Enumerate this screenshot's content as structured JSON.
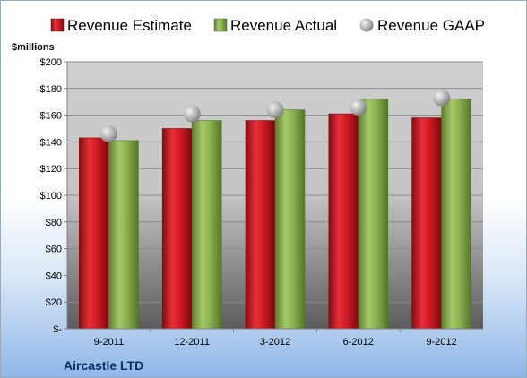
{
  "chart_data": {
    "type": "bar",
    "categories": [
      "9-2011",
      "12-2011",
      "3-2012",
      "6-2012",
      "9-2012"
    ],
    "series": [
      {
        "name": "Revenue Estimate",
        "kind": "bar",
        "color": "#c8141e",
        "values": [
          143,
          150,
          156,
          161,
          158
        ]
      },
      {
        "name": "Revenue Actual",
        "kind": "bar",
        "color": "#86ad4a",
        "values": [
          141,
          156,
          164,
          172,
          172
        ]
      },
      {
        "name": "Revenue GAAP",
        "kind": "marker",
        "color": "#b4b4b4",
        "values": [
          146,
          161,
          164,
          166,
          173
        ]
      }
    ],
    "ylabel": "$millions",
    "ylim": [
      0,
      200
    ],
    "yticks": [
      0,
      20,
      40,
      60,
      80,
      100,
      120,
      140,
      160,
      180,
      200
    ],
    "ytick_labels": [
      "$-",
      "$20",
      "$40",
      "$60",
      "$80",
      "$100",
      "$120",
      "$140",
      "$160",
      "$180",
      "$200"
    ],
    "grid": true,
    "legend_position": "top",
    "footer_label": "Aircastle LTD"
  }
}
